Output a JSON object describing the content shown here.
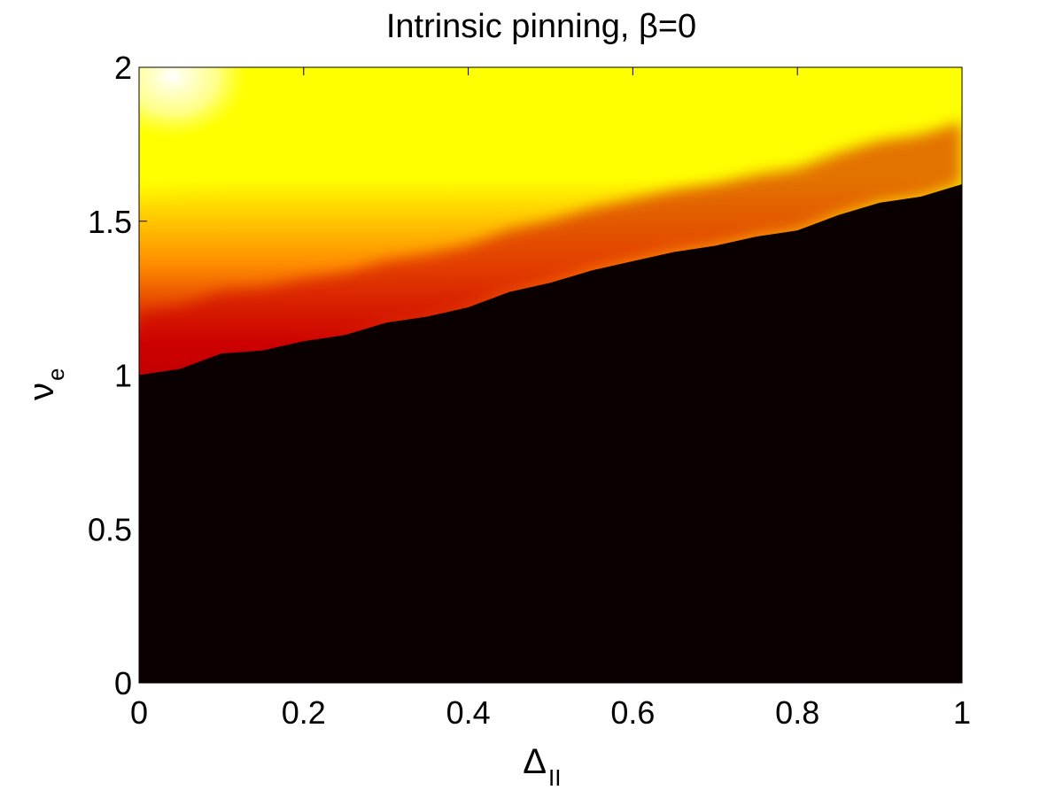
{
  "chart_data": {
    "type": "heatmap",
    "title": "Intrinsic pinning, β=0",
    "xlabel": {
      "symbol": "Δ",
      "subscript": "II"
    },
    "ylabel": {
      "symbol": "ν",
      "subscript": "e"
    },
    "xlim": [
      0,
      1
    ],
    "ylim": [
      0,
      2
    ],
    "x_ticks": [
      "0",
      "0.2",
      "0.4",
      "0.6",
      "0.8",
      "1"
    ],
    "y_ticks": [
      "0",
      "0.5",
      "1",
      "1.5",
      "2"
    ],
    "x_tick_values": [
      0,
      0.2,
      0.4,
      0.6,
      0.8,
      1
    ],
    "y_tick_values": [
      0,
      0.5,
      1,
      1.5,
      2
    ],
    "colormap": "hot",
    "grid": false,
    "colors": {
      "pinned": "#0b0000",
      "low": "#cc0000",
      "mid": "#ff8c00",
      "high": "#ffff00",
      "max": "#ffffff"
    },
    "pinning_boundary": {
      "x": [
        0,
        0.05,
        0.1,
        0.15,
        0.2,
        0.25,
        0.3,
        0.35,
        0.4,
        0.45,
        0.5,
        0.55,
        0.6,
        0.65,
        0.7,
        0.75,
        0.8,
        0.85,
        0.9,
        0.95,
        1
      ],
      "y": [
        1.0,
        1.02,
        1.07,
        1.08,
        1.11,
        1.13,
        1.17,
        1.19,
        1.22,
        1.27,
        1.3,
        1.34,
        1.37,
        1.4,
        1.42,
        1.45,
        1.47,
        1.52,
        1.56,
        1.58,
        1.62
      ]
    },
    "yellow_contour": {
      "x": [
        0,
        0.1,
        0.2,
        0.3,
        0.4,
        0.5,
        0.6,
        0.7,
        0.8,
        0.9,
        1
      ],
      "y": [
        1.6,
        1.68,
        1.72,
        1.77,
        1.8,
        1.84,
        1.88,
        1.92,
        1.95,
        1.98,
        2.0
      ]
    },
    "white_peak": {
      "x": 0.03,
      "y": 2.0
    }
  }
}
